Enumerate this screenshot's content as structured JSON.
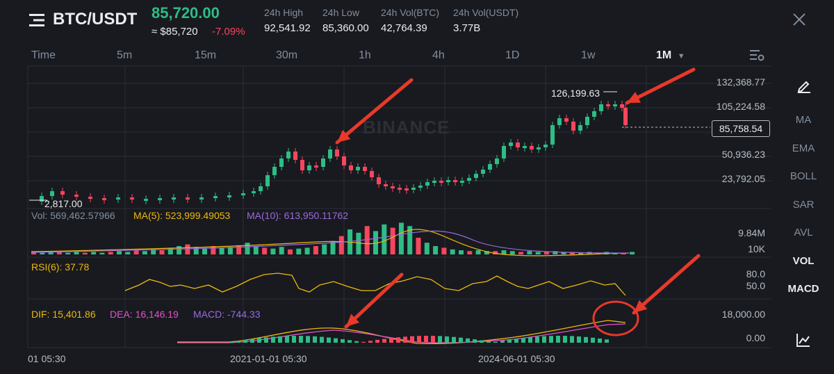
{
  "header": {
    "symbol": "BTC/USDT",
    "price": "85,720.00",
    "fiat_price": "≈ $85,720",
    "change": "-7.09%",
    "stats": [
      {
        "label": "24h High",
        "value": "92,541.92"
      },
      {
        "label": "24h Low",
        "value": "85,360.00"
      },
      {
        "label": "24h Vol(BTC)",
        "value": "42,764.39"
      },
      {
        "label": "24h Vol(USDT)",
        "value": "3.77B"
      }
    ]
  },
  "tabs": [
    "Time",
    "5m",
    "15m",
    "30m",
    "1h",
    "4h",
    "1D",
    "1w",
    "1M"
  ],
  "active_tab": "1M",
  "sidebar": [
    "MA",
    "EMA",
    "BOLL",
    "SAR",
    "AVL",
    "VOL",
    "MACD"
  ],
  "watermark": "BINANCE",
  "price_axis": [
    "132,368.77",
    "105,224.58",
    "50,936.23",
    "23,792.05"
  ],
  "current_price_tag": "85,758.54",
  "high_label": "126,199.63",
  "low_label": "2,817.00",
  "volume": {
    "vol": "Vol: 569,462.57966",
    "ma5": "MA(5): 523,999.49053",
    "ma10": "MA(10): 613,950.11762",
    "axis": [
      "9.84M",
      "10K"
    ]
  },
  "rsi": {
    "label": "RSI(6): 37.78",
    "axis": [
      "80.0",
      "50.0"
    ]
  },
  "macd": {
    "dif": "DIF: 15,401.86",
    "dea": "DEA: 16,146.19",
    "macd": "MACD: -744.33",
    "axis": [
      "18,000.00",
      "0.00"
    ]
  },
  "time_axis": [
    "01 05:30",
    "2021-01-01 05:30",
    "2024-06-01 05:30"
  ],
  "colors": {
    "up": "#2ebd85",
    "down": "#f6465d",
    "ma5": "#f0b90b",
    "ma10": "#9c6ade",
    "dea": "#e84fcf",
    "annotation": "#e8392a"
  },
  "icons": [
    "menu-icon",
    "close-icon",
    "settings-icon",
    "pencil-icon",
    "chart-icon"
  ]
}
